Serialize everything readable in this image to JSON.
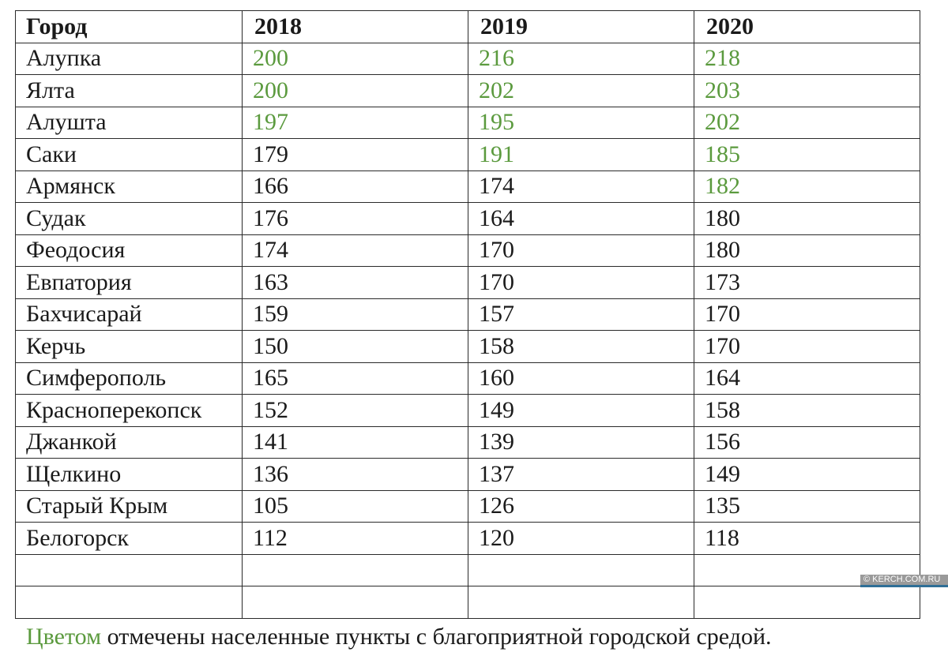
{
  "table": {
    "headers": [
      "Город",
      "2018",
      "2019",
      "2020"
    ],
    "rows": [
      {
        "city": "Алупка",
        "values": [
          "200",
          "216",
          "218"
        ],
        "green": [
          true,
          true,
          true
        ]
      },
      {
        "city": "Ялта",
        "values": [
          "200",
          "202",
          "203"
        ],
        "green": [
          true,
          true,
          true
        ]
      },
      {
        "city": "Алушта",
        "values": [
          "197",
          "195",
          "202"
        ],
        "green": [
          true,
          true,
          true
        ]
      },
      {
        "city": "Саки",
        "values": [
          "179",
          "191",
          "185"
        ],
        "green": [
          false,
          true,
          true
        ]
      },
      {
        "city": "Армянск",
        "values": [
          "166",
          "174",
          "182"
        ],
        "green": [
          false,
          false,
          true
        ]
      },
      {
        "city": "Судак",
        "values": [
          "176",
          "164",
          "180"
        ],
        "green": [
          false,
          false,
          false
        ]
      },
      {
        "city": "Феодосия",
        "values": [
          "174",
          "170",
          "180"
        ],
        "green": [
          false,
          false,
          false
        ]
      },
      {
        "city": "Евпатория",
        "values": [
          "163",
          "170",
          "173"
        ],
        "green": [
          false,
          false,
          false
        ]
      },
      {
        "city": "Бахчисарай",
        "values": [
          "159",
          "157",
          "170"
        ],
        "green": [
          false,
          false,
          false
        ]
      },
      {
        "city": "Керчь",
        "values": [
          "150",
          "158",
          "170"
        ],
        "green": [
          false,
          false,
          false
        ]
      },
      {
        "city": "Симферополь",
        "values": [
          "165",
          "160",
          "164"
        ],
        "green": [
          false,
          false,
          false
        ]
      },
      {
        "city": "Красноперекопск",
        "values": [
          "152",
          "149",
          "158"
        ],
        "green": [
          false,
          false,
          false
        ]
      },
      {
        "city": "Джанкой",
        "values": [
          "141",
          "139",
          "156"
        ],
        "green": [
          false,
          false,
          false
        ]
      },
      {
        "city": "Щелкино",
        "values": [
          "136",
          "137",
          "149"
        ],
        "green": [
          false,
          false,
          false
        ]
      },
      {
        "city": "Старый Крым",
        "values": [
          "105",
          "126",
          "135"
        ],
        "green": [
          false,
          false,
          false
        ]
      },
      {
        "city": "Белогорск",
        "values": [
          "112",
          "120",
          "118"
        ],
        "green": [
          false,
          false,
          false
        ]
      },
      {
        "city": "",
        "values": [
          "",
          "",
          ""
        ],
        "green": [
          false,
          false,
          false
        ]
      },
      {
        "city": "",
        "values": [
          "",
          "",
          ""
        ],
        "green": [
          false,
          false,
          false
        ]
      }
    ]
  },
  "footer": {
    "highlight": "Цветом",
    "text": " отмечены населенные пункты с благоприятной городской средой."
  },
  "watermark": "© KERCH.COM.RU",
  "colors": {
    "highlight_green": "#5b9a3e",
    "text": "#1a1a1a",
    "border": "#2a2a2a"
  }
}
